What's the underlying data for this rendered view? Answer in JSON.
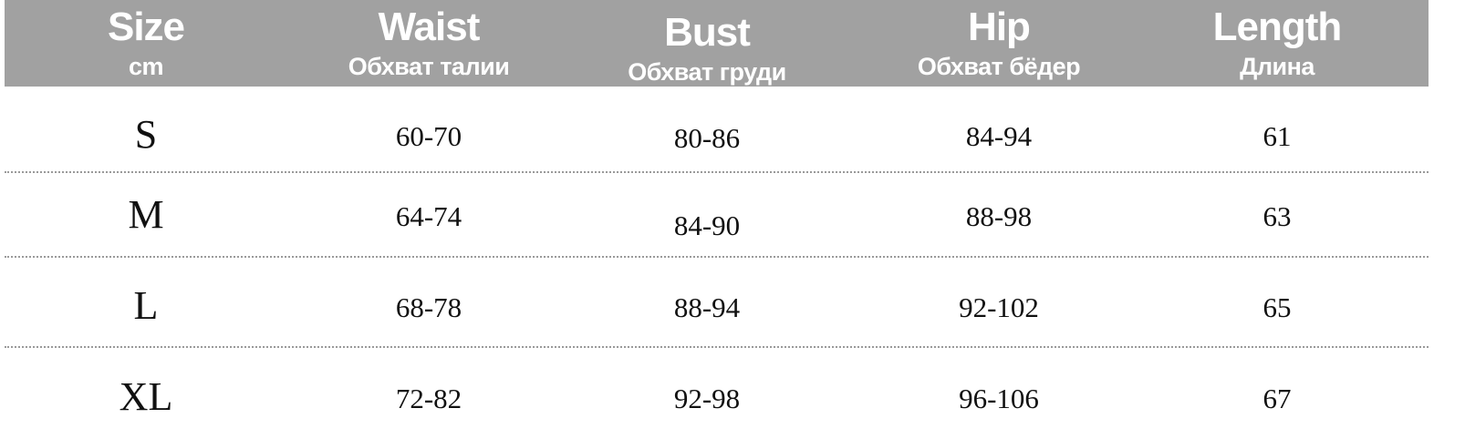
{
  "columns": [
    {
      "title": "Size",
      "subtitle": "cm"
    },
    {
      "title": "Waist",
      "subtitle": "Обхват талии"
    },
    {
      "title": "Bust",
      "subtitle": "Обхват груди"
    },
    {
      "title": "Hip",
      "subtitle": "Обхват бёдер"
    },
    {
      "title": "Length",
      "subtitle": "Длина"
    }
  ],
  "rows": [
    [
      "S",
      "60-70",
      "80-86",
      "84-94",
      "61"
    ],
    [
      "M",
      "64-74",
      "84-90",
      "88-98",
      "63"
    ],
    [
      "L",
      "68-78",
      "88-94",
      "92-102",
      "65"
    ],
    [
      "XL",
      "72-82",
      "92-98",
      "96-106",
      "67"
    ]
  ],
  "colors": {
    "header_bg": "#a1a1a1",
    "header_text": "#ffffff",
    "body_text": "#111111"
  }
}
